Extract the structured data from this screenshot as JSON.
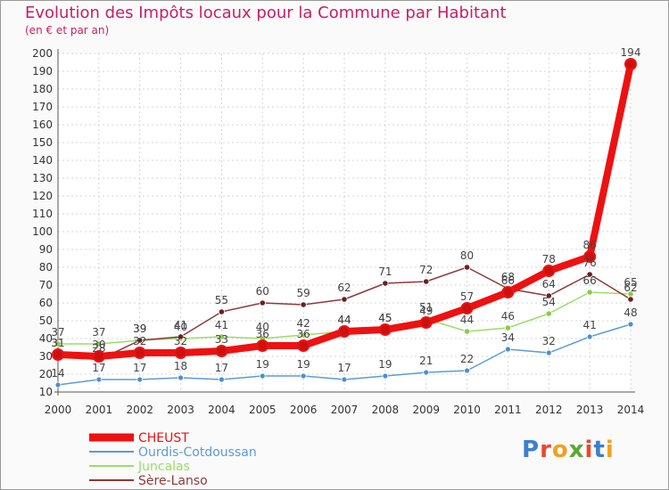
{
  "title": "Evolution des Impôts locaux pour la Commune par Habitant",
  "subtitle": "(en € et par an)",
  "logo_text": "Proxiti",
  "chart_data": {
    "type": "line",
    "title": "Evolution des Impôts locaux pour la Commune par Habitant",
    "subtitle": "(en € et par an)",
    "xlabel": "",
    "ylabel": "",
    "x": [
      2000,
      2001,
      2002,
      2003,
      2004,
      2005,
      2006,
      2007,
      2008,
      2009,
      2010,
      2011,
      2012,
      2013,
      2014
    ],
    "ylim": [
      10,
      200
    ],
    "yticks": [
      10,
      20,
      30,
      40,
      50,
      60,
      70,
      80,
      90,
      100,
      110,
      120,
      130,
      140,
      150,
      160,
      170,
      180,
      190,
      200
    ],
    "grid": true,
    "legend_position": "bottom-left",
    "series": [
      {
        "name": "CHEUST",
        "color": "#ee1111",
        "values": [
          31,
          30,
          32,
          32,
          33,
          36,
          36,
          44,
          45,
          49,
          57,
          66,
          78,
          86,
          194
        ]
      },
      {
        "name": "Ourdis-Cotdoussan",
        "color": "#5b9bd5",
        "values": [
          14,
          17,
          17,
          18,
          17,
          19,
          19,
          17,
          19,
          21,
          22,
          34,
          32,
          41,
          48
        ]
      },
      {
        "name": "Juncalas",
        "color": "#99dd66",
        "values": [
          37,
          37,
          39,
          40,
          41,
          40,
          42,
          44,
          45,
          51,
          44,
          46,
          54,
          66,
          65
        ]
      },
      {
        "name": "Sère-Lanso",
        "color": "#8b3a3a",
        "values": [
          31,
          28,
          39,
          41,
          55,
          60,
          59,
          62,
          71,
          72,
          80,
          68,
          64,
          76,
          62
        ]
      }
    ]
  }
}
